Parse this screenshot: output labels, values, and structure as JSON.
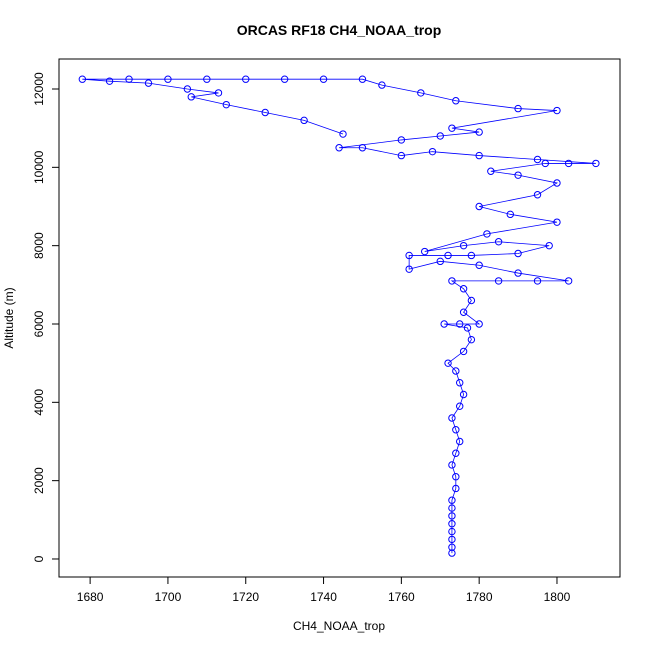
{
  "chart_data": {
    "type": "scatter",
    "line": true,
    "title": "ORCAS RF18 CH4_NOAA_trop",
    "xlabel": "CH4_NOAA_trop",
    "ylabel": "Altitude (m)",
    "color": "#0000ff",
    "x": [
      1773,
      1773,
      1773,
      1773,
      1773,
      1773,
      1773,
      1773,
      1774,
      1774,
      1773,
      1774,
      1775,
      1774,
      1773,
      1775,
      1776,
      1775,
      1774,
      1772,
      1776,
      1778,
      1777,
      1771,
      1775,
      1780,
      1776,
      1778,
      1776,
      1773,
      1785,
      1795,
      1803,
      1790,
      1780,
      1770,
      1762,
      1762,
      1772,
      1778,
      1790,
      1798,
      1785,
      1776,
      1766,
      1782,
      1800,
      1788,
      1780,
      1795,
      1800,
      1790,
      1783,
      1797,
      1803,
      1810,
      1795,
      1780,
      1768,
      1760,
      1750,
      1744,
      1760,
      1770,
      1780,
      1773,
      1800,
      1790,
      1774,
      1765,
      1755,
      1750,
      1740,
      1730,
      1720,
      1710,
      1700,
      1690,
      1678,
      1685,
      1695,
      1705,
      1713,
      1706,
      1715,
      1725,
      1735,
      1745
    ],
    "y": [
      150,
      300,
      500,
      700,
      900,
      1100,
      1300,
      1500,
      1800,
      2100,
      2400,
      2700,
      3000,
      3300,
      3600,
      3900,
      4200,
      4500,
      4800,
      5000,
      5300,
      5600,
      5900,
      6000,
      6000,
      6000,
      6300,
      6600,
      6900,
      7100,
      7100,
      7100,
      7100,
      7300,
      7500,
      7600,
      7400,
      7750,
      7750,
      7750,
      7800,
      8000,
      8100,
      8000,
      7850,
      8300,
      8600,
      8800,
      9000,
      9300,
      9600,
      9800,
      9900,
      10100,
      10100,
      10100,
      10200,
      10300,
      10400,
      10300,
      10500,
      10500,
      10700,
      10800,
      10900,
      11000,
      11450,
      11500,
      11700,
      11900,
      12100,
      12250,
      12250,
      12250,
      12250,
      12250,
      12250,
      12250,
      12250,
      12200,
      12150,
      12000,
      11900,
      11800,
      11600,
      11400,
      11200,
      10850
    ],
    "xlim": [
      1672,
      1816.2
    ],
    "ylim": [
      -460,
      12766
    ],
    "xticks": [
      1680,
      1700,
      1720,
      1740,
      1760,
      1780,
      1800
    ],
    "yticks": [
      0,
      2000,
      4000,
      6000,
      8000,
      10000,
      12000
    ]
  }
}
